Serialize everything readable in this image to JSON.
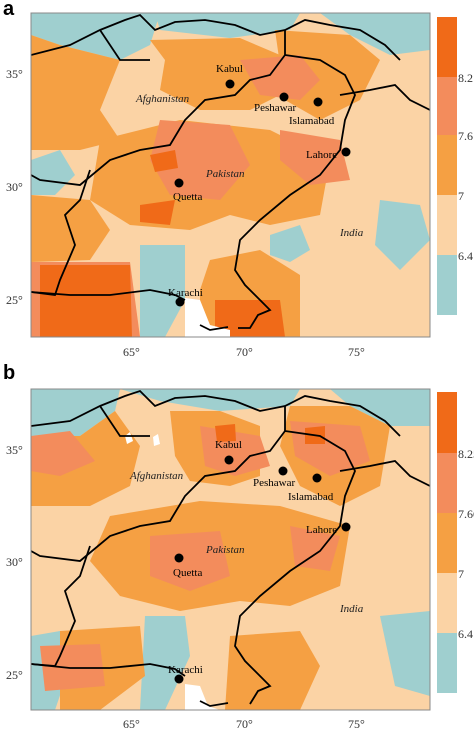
{
  "colors": {
    "band1": "#9fcfcf",
    "band2": "#fbd3a5",
    "band3": "#f5a043",
    "band4": "#f38c5c",
    "band5": "#f06a18",
    "border": "#000000",
    "frame": "#888888"
  },
  "panels": [
    {
      "letter": "a",
      "legend_ticks": [
        "8.2",
        "7.6",
        "7",
        "6.4"
      ],
      "x_ticks": [
        "65°",
        "70°",
        "75°"
      ],
      "y_ticks": [
        "35°",
        "30°",
        "25°"
      ],
      "cities": [
        "Kabul",
        "Peshawar",
        "Islamabad",
        "Lahore",
        "Quetta",
        "Karachi"
      ],
      "countries": [
        "Afghanistan",
        "Pakistan",
        "India"
      ]
    },
    {
      "letter": "b",
      "legend_ticks": [
        "8.25",
        "7.66",
        "7",
        "6.4"
      ],
      "x_ticks": [
        "65°",
        "70°",
        "75°"
      ],
      "y_ticks": [
        "35°",
        "30°",
        "25°"
      ],
      "cities": [
        "Kabul",
        "Peshawar",
        "Islamabad",
        "Lahore",
        "Quetta",
        "Karachi"
      ],
      "countries": [
        "Afghanistan",
        "Pakistan",
        "India"
      ]
    }
  ]
}
